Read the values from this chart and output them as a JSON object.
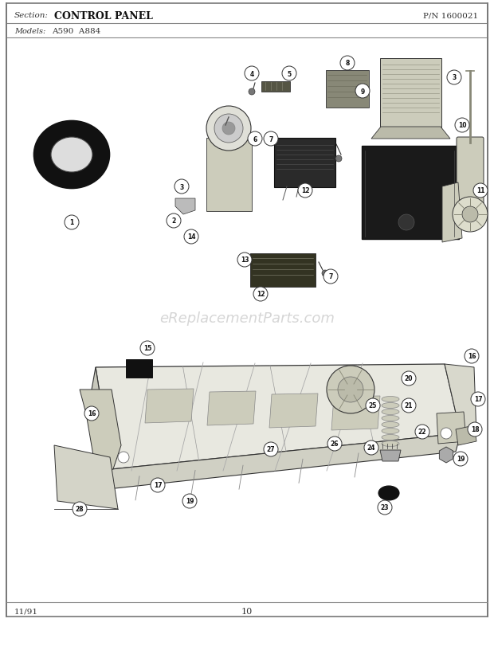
{
  "title_section": "Section:",
  "title_name": "CONTROL PANEL",
  "pn": "P/N 1600021",
  "models_label": "Models:",
  "models": "A590  A884",
  "page_number": "10",
  "date": "11/91",
  "watermark": "eReplacementParts.com",
  "bg_color": "#ffffff",
  "line_color": "#333333",
  "text_color": "#222222",
  "watermark_color": "#c8c8c8",
  "dark_part": "#1a1a1a",
  "mid_part": "#555555",
  "light_part": "#aaaaaa"
}
